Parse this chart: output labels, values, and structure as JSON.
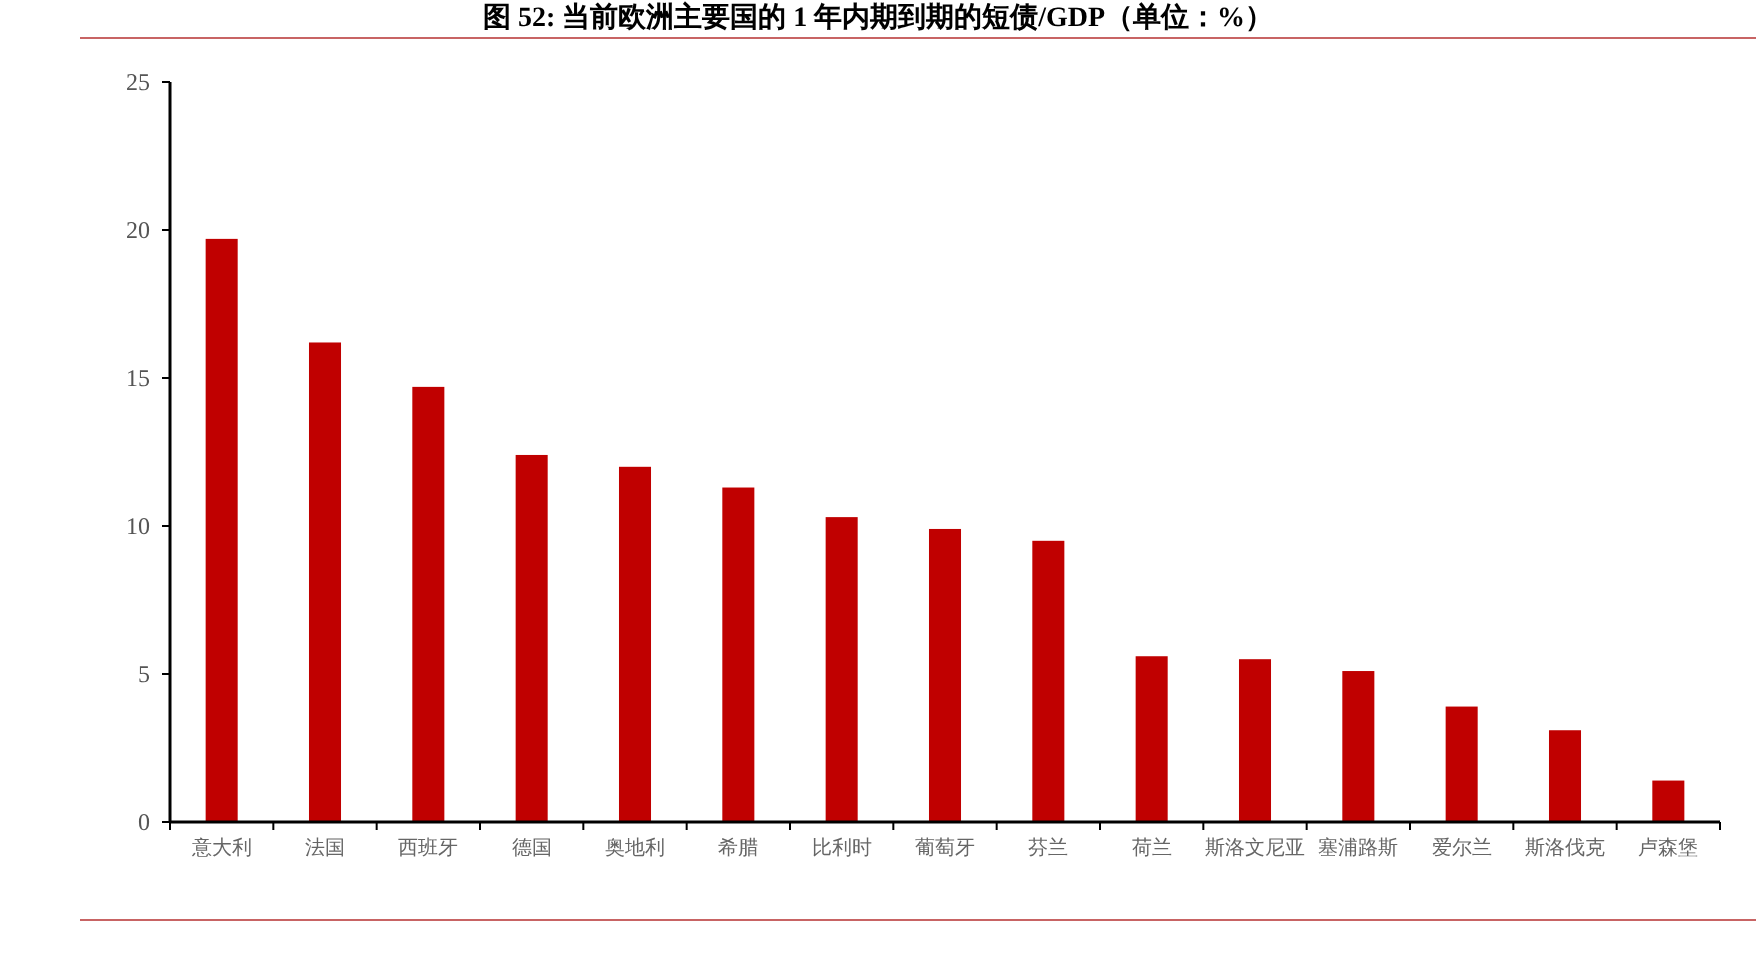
{
  "chart_data": {
    "type": "bar",
    "title": "图 52: 当前欧洲主要国的 1 年内期到期的短债/GDP（单位：%）",
    "categories": [
      "意大利",
      "法国",
      "西班牙",
      "德国",
      "奥地利",
      "希腊",
      "比利时",
      "葡萄牙",
      "芬兰",
      "荷兰",
      "斯洛文尼亚",
      "塞浦路斯",
      "爱尔兰",
      "斯洛伐克",
      "卢森堡"
    ],
    "values": [
      19.7,
      16.2,
      14.7,
      12.4,
      12.0,
      11.3,
      10.3,
      9.9,
      9.5,
      5.6,
      5.5,
      5.1,
      3.9,
      3.1,
      1.4
    ],
    "color": "#c00000",
    "ylim": [
      0,
      25
    ],
    "yticks": [
      0,
      5,
      10,
      15,
      20,
      25
    ],
    "grid": false
  }
}
